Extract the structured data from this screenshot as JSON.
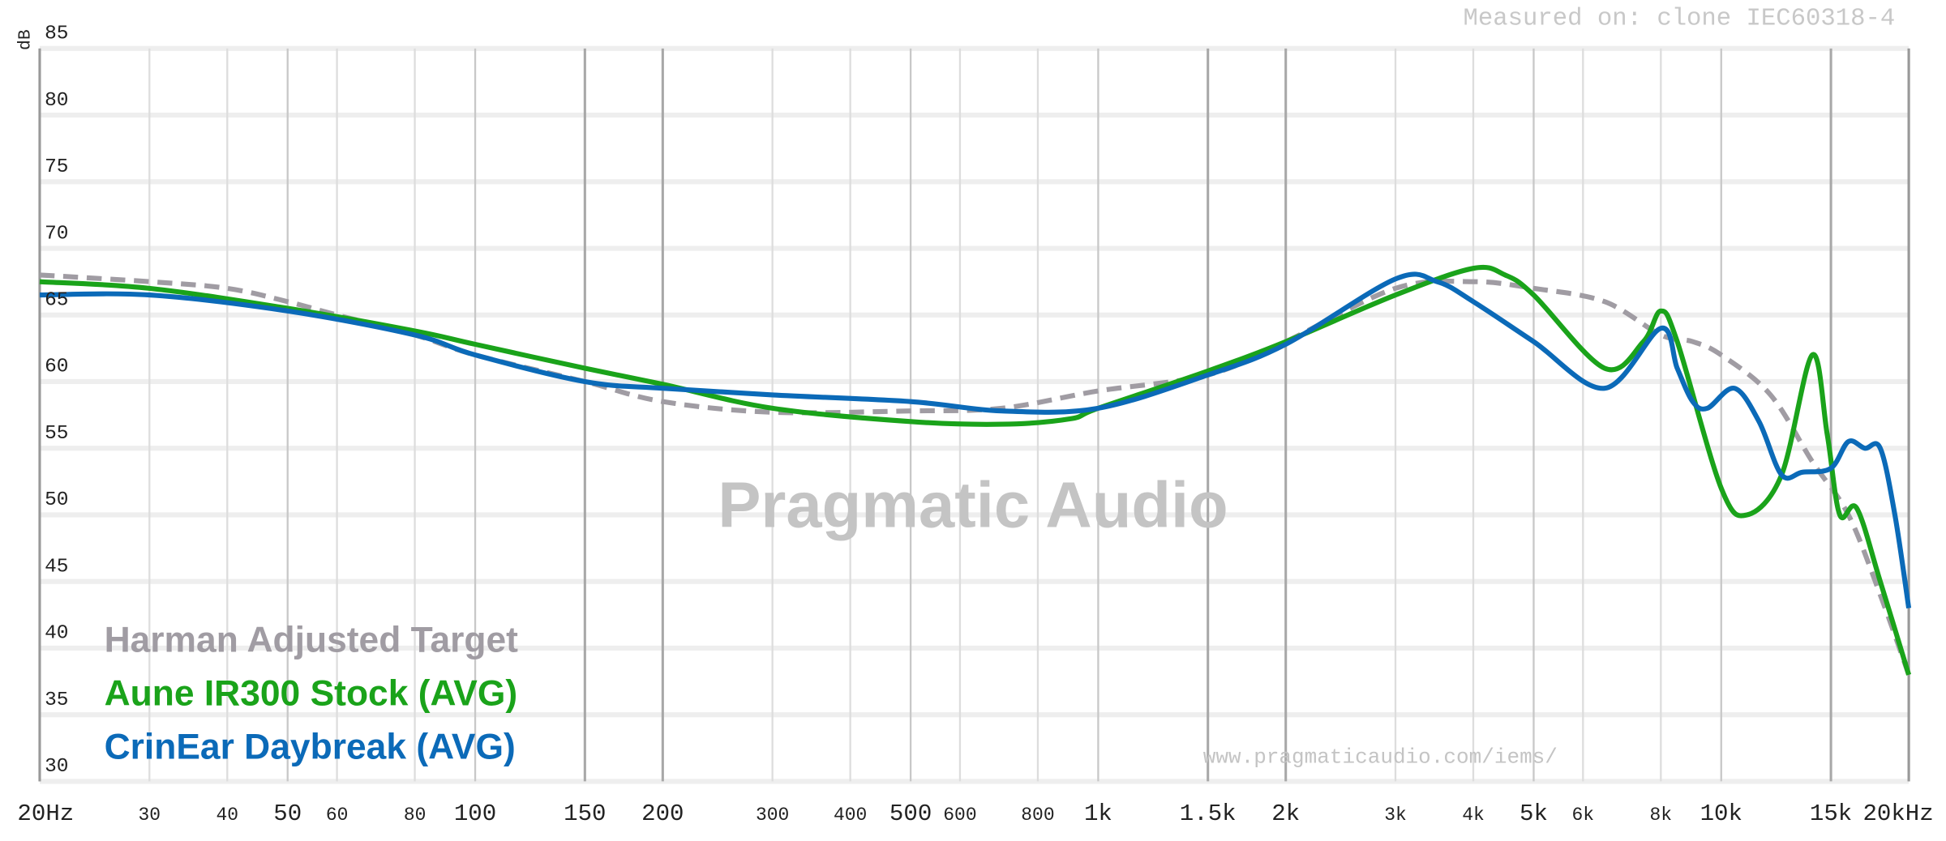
{
  "chart_data": {
    "type": "line",
    "annotations": {
      "measured": "Measured on: clone IEC60318-4",
      "watermark": "Pragmatic Audio",
      "url": "www.pragmaticaudio.com/iems/"
    },
    "y_label": "dB",
    "log_x": true,
    "grid": true,
    "xlim": [
      20,
      20000
    ],
    "ylim": [
      30,
      85
    ],
    "yticks": [
      30,
      35,
      40,
      45,
      50,
      55,
      60,
      65,
      70,
      75,
      80,
      85
    ],
    "xticks": [
      {
        "value": 20,
        "label": "20Hz"
      },
      30,
      40,
      50,
      60,
      80,
      100,
      150,
      200,
      300,
      400,
      500,
      600,
      800,
      {
        "value": 1000,
        "label": "1k"
      },
      {
        "value": 1500,
        "label": "1.5k"
      },
      {
        "value": 2000,
        "label": "2k"
      },
      {
        "value": 3000,
        "label": "3k"
      },
      {
        "value": 4000,
        "label": "4k"
      },
      {
        "value": 5000,
        "label": "5k"
      },
      {
        "value": 6000,
        "label": "6k"
      },
      {
        "value": 8000,
        "label": "8k"
      },
      {
        "value": 10000,
        "label": "10k"
      },
      {
        "value": 15000,
        "label": "15k"
      },
      {
        "value": 20000,
        "label": "20kHz"
      }
    ],
    "legend": "lower left",
    "series": [
      {
        "name": "Harman Adjusted Target",
        "color": "#a09ca3",
        "style": "dashed",
        "x": [
          20,
          30,
          40,
          50,
          60,
          80,
          100,
          150,
          200,
          300,
          500,
          700,
          1000,
          1500,
          2000,
          3000,
          4000,
          5000,
          6500,
          8000,
          9000,
          10000,
          12000,
          14000,
          16000,
          18000,
          20000
        ],
        "values": [
          68,
          67.5,
          67,
          66,
          65,
          63.5,
          62,
          60,
          58.5,
          57.7,
          57.8,
          58,
          59.3,
          60.5,
          63,
          67,
          67.5,
          67,
          66,
          63.5,
          63,
          62,
          59,
          54,
          50,
          44,
          38
        ]
      },
      {
        "name": "Aune IR300 Stock (AVG)",
        "color": "#1aa31a",
        "style": "solid",
        "x": [
          20,
          30,
          50,
          80,
          100,
          150,
          200,
          300,
          500,
          700,
          900,
          1000,
          1500,
          2000,
          3000,
          4000,
          4500,
          5000,
          6500,
          7500,
          8000,
          8500,
          10000,
          11000,
          12500,
          14000,
          14800,
          15500,
          16500,
          18000,
          20000
        ],
        "values": [
          67.5,
          67,
          65.5,
          63.8,
          62.8,
          61,
          59.8,
          58,
          57,
          56.8,
          57.2,
          58,
          60.8,
          63,
          66.5,
          68.5,
          68,
          66.5,
          61,
          63,
          65.3,
          63,
          52,
          50,
          53,
          62,
          56,
          50,
          50.5,
          45,
          38
        ]
      },
      {
        "name": "CrinEar Daybreak (AVG)",
        "color": "#0b6ab8",
        "style": "solid",
        "x": [
          20,
          30,
          50,
          80,
          100,
          150,
          200,
          300,
          500,
          700,
          1000,
          1500,
          2000,
          3000,
          3500,
          4000,
          5000,
          6500,
          8000,
          8500,
          9000,
          9500,
          10500,
          11500,
          12500,
          13500,
          15000,
          16000,
          17000,
          18000,
          19000,
          20000
        ],
        "values": [
          66.5,
          66.5,
          65.3,
          63.5,
          62,
          60,
          59.5,
          59,
          58.5,
          57.8,
          58,
          60.5,
          62.8,
          67.7,
          67.5,
          66,
          63,
          59.5,
          64,
          61,
          58.5,
          58,
          59.5,
          57,
          53,
          53.2,
          53.5,
          55.5,
          55,
          55,
          50,
          43
        ]
      }
    ]
  }
}
